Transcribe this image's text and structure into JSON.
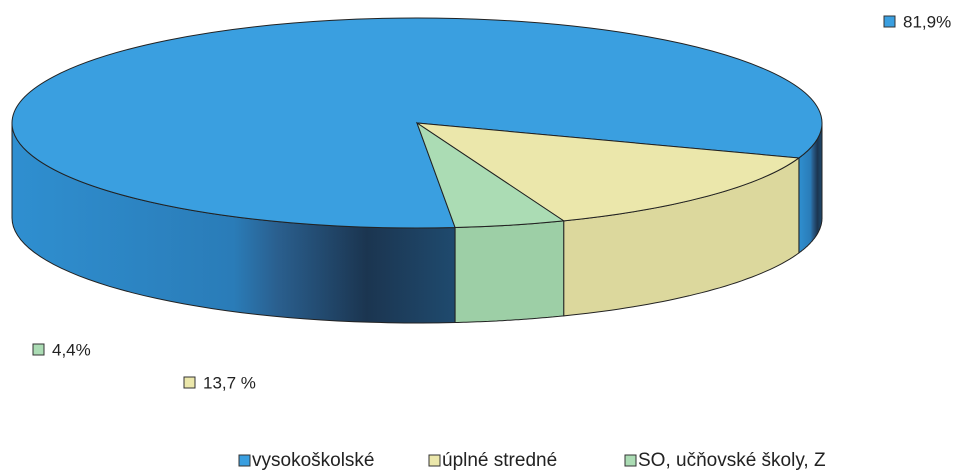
{
  "chart_data": {
    "type": "pie3d",
    "categories": [
      "vysokoškolské",
      "úplné stredné",
      "SO, učňovské školy, Z"
    ],
    "values": [
      81.9,
      13.7,
      4.4
    ],
    "value_labels": [
      "81,9%",
      "13,7 %",
      "4,4%"
    ],
    "colors": [
      "#3a9fe0",
      "#ebe7ab",
      "#abdcb4"
    ],
    "legend": "bottom"
  }
}
